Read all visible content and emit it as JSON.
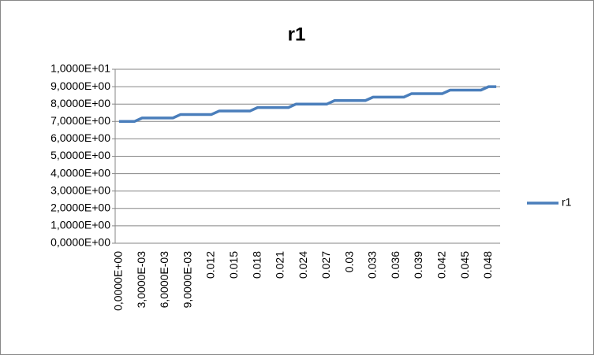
{
  "chart_data": {
    "type": "line",
    "title": "r1",
    "categories": [
      "0,0000E+00",
      null,
      null,
      "3,0000E-03",
      null,
      null,
      "6,0000E-03",
      null,
      null,
      "9,0000E-03",
      null,
      null,
      "0.012",
      null,
      null,
      "0.015",
      null,
      null,
      "0.018",
      null,
      null,
      "0.021",
      null,
      null,
      "0.024",
      null,
      null,
      "0.027",
      null,
      null,
      "0.03",
      null,
      null,
      "0.033",
      null,
      null,
      "0.036",
      null,
      null,
      "0.039",
      null,
      null,
      "0.042",
      null,
      null,
      "0.045",
      null,
      null,
      "0.048",
      null
    ],
    "series": [
      {
        "name": "r1",
        "color": "#4a7ebb",
        "values": [
          7.0,
          7.0,
          7.0,
          7.2,
          7.2,
          7.2,
          7.2,
          7.2,
          7.4,
          7.4,
          7.4,
          7.4,
          7.4,
          7.6,
          7.6,
          7.6,
          7.6,
          7.6,
          7.8,
          7.8,
          7.8,
          7.8,
          7.8,
          8.0,
          8.0,
          8.0,
          8.0,
          8.0,
          8.2,
          8.2,
          8.2,
          8.2,
          8.2,
          8.4,
          8.4,
          8.4,
          8.4,
          8.4,
          8.6,
          8.6,
          8.6,
          8.6,
          8.6,
          8.8,
          8.8,
          8.8,
          8.8,
          8.8,
          9.0,
          9.0
        ]
      }
    ],
    "ylim": [
      0,
      10
    ],
    "yticks": [
      {
        "value": 0,
        "label": "0,0000E+00"
      },
      {
        "value": 1,
        "label": "1,0000E+00"
      },
      {
        "value": 2,
        "label": "2,0000E+00"
      },
      {
        "value": 3,
        "label": "3,0000E+00"
      },
      {
        "value": 4,
        "label": "4,0000E+00"
      },
      {
        "value": 5,
        "label": "5,0000E+00"
      },
      {
        "value": 6,
        "label": "6,0000E+00"
      },
      {
        "value": 7,
        "label": "7,0000E+00"
      },
      {
        "value": 8,
        "label": "8,0000E+00"
      },
      {
        "value": 9,
        "label": "9,0000E+00"
      },
      {
        "value": 10,
        "label": "1,0000E+01"
      }
    ],
    "grid": true,
    "legend": "right"
  }
}
